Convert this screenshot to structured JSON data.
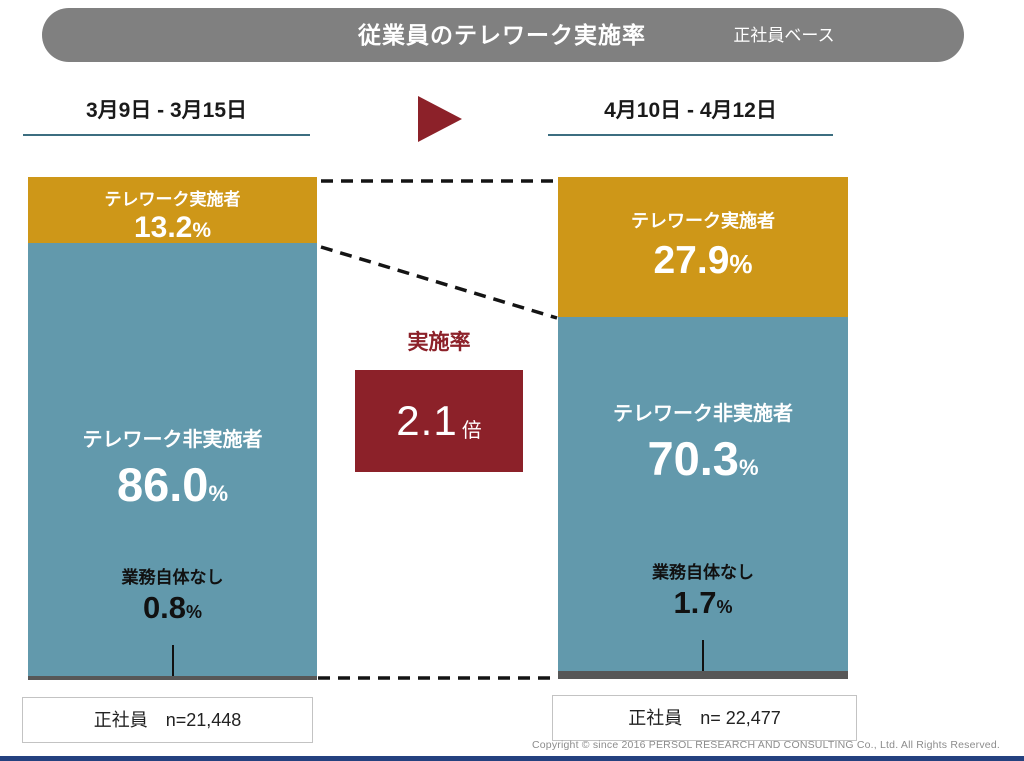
{
  "header": {
    "title": "従業員のテレワーク実施率",
    "subtitle": "正社員ベース"
  },
  "periods": {
    "before": "3月9日 - 3月15日",
    "after": "4月10日 - 4月12日"
  },
  "labels": {
    "percent": "%"
  },
  "ratio": {
    "label": "実施率",
    "value": "2.1",
    "unit": "倍"
  },
  "bars": {
    "before": {
      "telework_label": "テレワーク実施者",
      "telework_value": "13.2",
      "non_telework_label": "テレワーク非実施者",
      "non_telework_value": "86.0",
      "no_work_label": "業務自体なし",
      "no_work_value": "0.8",
      "n_label": "正社員　n=21,448"
    },
    "after": {
      "telework_label": "テレワーク実施者",
      "telework_value": "27.9",
      "non_telework_label": "テレワーク非実施者",
      "non_telework_value": "70.3",
      "no_work_label": "業務自体なし",
      "no_work_value": "1.7",
      "n_label": "正社員　n= 22,477"
    }
  },
  "footer": "Copyright © since 2016  PERSOL  RESEARCH AND CONSULTING Co., Ltd. All Rights Reserved.",
  "colors": {
    "header_gray": "#808080",
    "telework_orange": "#ce9718",
    "non_telework_blue": "#6299ac",
    "no_work_gray": "#575757",
    "accent_red": "#8c2129",
    "underline_teal": "#3c6e80"
  },
  "chart_data": {
    "type": "bar",
    "subtype": "stacked-100-percent",
    "title": "従業員のテレワーク実施率（正社員ベース）",
    "categories": [
      "3月9日 - 3月15日",
      "4月10日 - 4月12日"
    ],
    "series": [
      {
        "name": "テレワーク実施者",
        "values": [
          13.2,
          27.9
        ],
        "color": "#ce9718"
      },
      {
        "name": "テレワーク非実施者",
        "values": [
          86.0,
          70.3
        ],
        "color": "#6299ac"
      },
      {
        "name": "業務自体なし",
        "values": [
          0.8,
          1.7
        ],
        "color": "#575757"
      }
    ],
    "sample_sizes": [
      21448,
      22477
    ],
    "annotation": "実施率 2.1倍",
    "unit": "%",
    "ylim": [
      0,
      100
    ],
    "grid": false,
    "legend_position": "none (labels inside segments)"
  }
}
